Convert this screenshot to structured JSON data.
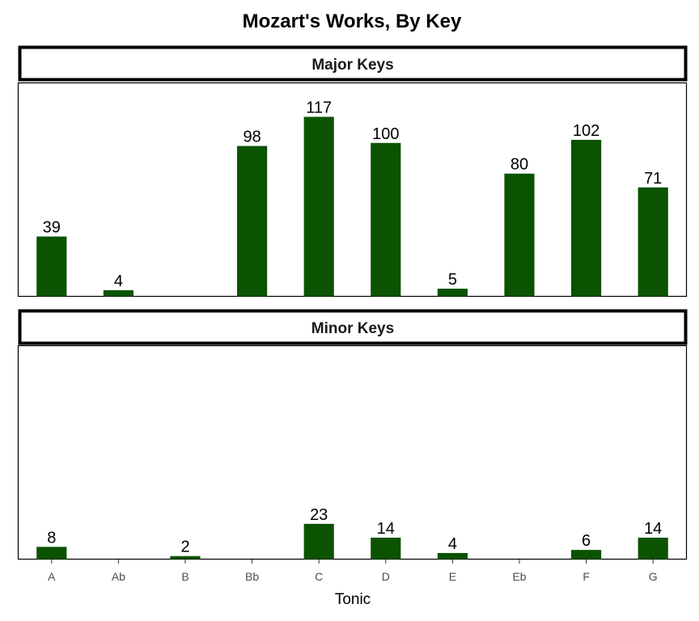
{
  "chart_data": {
    "type": "bar",
    "title": "Mozart's Works, By Key",
    "xlabel": "Tonic",
    "ylabel": "",
    "categories": [
      "A",
      "Ab",
      "B",
      "Bb",
      "C",
      "D",
      "E",
      "Eb",
      "F",
      "G"
    ],
    "bar_color": "#0b5300",
    "grid": false,
    "legend": "none",
    "facets": [
      {
        "label": "Major Keys",
        "ylim": [
          0,
          120
        ],
        "values": [
          39,
          4,
          null,
          98,
          117,
          100,
          5,
          80,
          102,
          71
        ]
      },
      {
        "label": "Minor Keys",
        "ylim": [
          0,
          120
        ],
        "values": [
          8,
          null,
          2,
          null,
          23,
          14,
          4,
          null,
          6,
          14
        ]
      }
    ]
  }
}
